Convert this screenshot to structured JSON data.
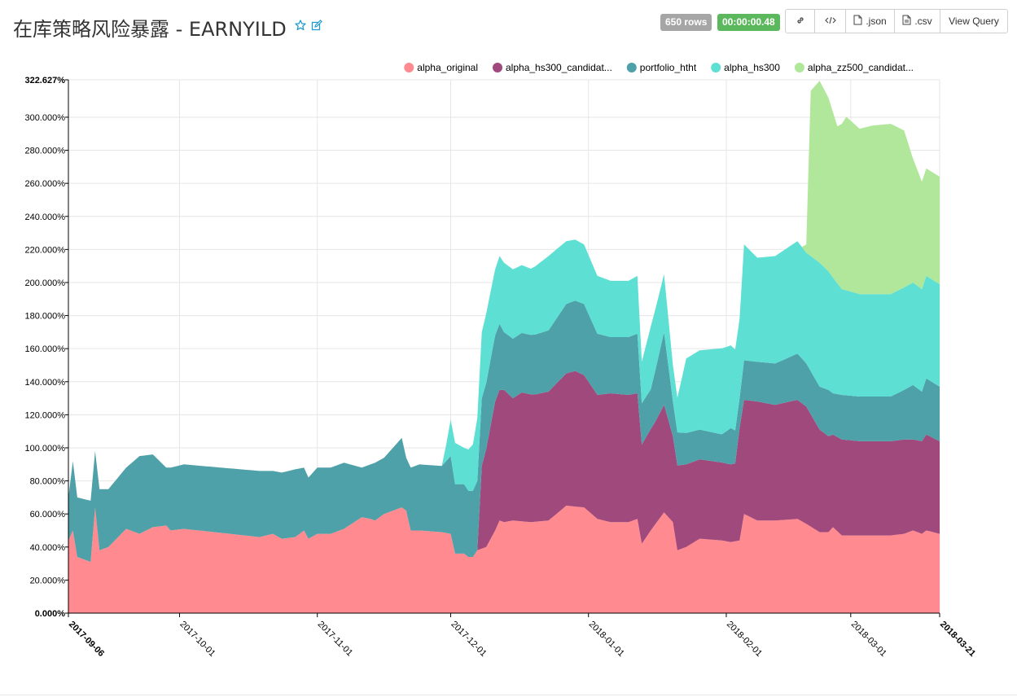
{
  "header": {
    "title": "在库策略风险暴露 - EARNYILD",
    "rows_badge": "650 rows",
    "time_badge": "00:00:00.48",
    "buttons": {
      "json": ".json",
      "csv": ".csv",
      "view_query": "View Query"
    },
    "icons": [
      "star-icon",
      "edit-icon",
      "link-icon",
      "code-icon",
      "file-icon",
      "file-text-icon"
    ]
  },
  "chart_data": {
    "type": "area",
    "stacked": true,
    "x_format": "date",
    "xlim": [
      "2017-09-06",
      "2018-03-21"
    ],
    "x_ticks": [
      "2017-09-06",
      "2017-10-01",
      "2017-11-01",
      "2017-12-01",
      "2018-01-01",
      "2018-02-01",
      "2018-03-01",
      "2018-03-21"
    ],
    "ylim": [
      0,
      322.627
    ],
    "y_ticks": [
      "0.000%",
      "20.000%",
      "40.000%",
      "60.000%",
      "80.000%",
      "100.000%",
      "120.000%",
      "140.000%",
      "160.000%",
      "180.000%",
      "200.000%",
      "220.000%",
      "240.000%",
      "260.000%",
      "280.000%",
      "300.000%",
      "322.627%"
    ],
    "grid": true,
    "legend": {
      "position": "top-right"
    },
    "series": [
      {
        "name": "alpha_original",
        "color": "#ff8a8f",
        "points": [
          [
            "2017-09-06",
            44
          ],
          [
            "2017-09-07",
            50
          ],
          [
            "2017-09-08",
            34
          ],
          [
            "2017-09-11",
            31
          ],
          [
            "2017-09-12",
            64
          ],
          [
            "2017-09-13",
            38
          ],
          [
            "2017-09-15",
            40
          ],
          [
            "2017-09-19",
            51
          ],
          [
            "2017-09-22",
            48
          ],
          [
            "2017-09-25",
            52
          ],
          [
            "2017-09-28",
            53
          ],
          [
            "2017-09-29",
            50
          ],
          [
            "2017-10-02",
            51
          ],
          [
            "2017-10-19",
            46
          ],
          [
            "2017-10-22",
            48
          ],
          [
            "2017-10-24",
            45
          ],
          [
            "2017-10-27",
            46
          ],
          [
            "2017-10-29",
            50
          ],
          [
            "2017-10-30",
            45
          ],
          [
            "2017-11-01",
            48
          ],
          [
            "2017-11-04",
            48
          ],
          [
            "2017-11-07",
            51
          ],
          [
            "2017-11-11",
            58
          ],
          [
            "2017-11-13",
            57
          ],
          [
            "2017-11-14",
            56
          ],
          [
            "2017-11-16",
            60
          ],
          [
            "2017-11-20",
            64
          ],
          [
            "2017-11-21",
            62
          ],
          [
            "2017-11-22",
            50
          ],
          [
            "2017-11-24",
            50
          ],
          [
            "2017-11-29",
            49
          ],
          [
            "2017-12-01",
            48
          ],
          [
            "2017-12-02",
            36
          ],
          [
            "2017-12-04",
            36
          ],
          [
            "2017-12-05",
            34
          ],
          [
            "2017-12-06",
            34
          ],
          [
            "2017-12-07",
            38
          ],
          [
            "2017-12-09",
            40
          ],
          [
            "2017-12-11",
            50
          ],
          [
            "2017-12-12",
            56
          ],
          [
            "2017-12-13",
            55
          ],
          [
            "2017-12-15",
            56
          ],
          [
            "2017-12-19",
            55
          ],
          [
            "2017-12-23",
            56
          ],
          [
            "2017-12-27",
            65
          ],
          [
            "2017-12-31",
            64
          ],
          [
            "2018-01-03",
            57
          ],
          [
            "2018-01-06",
            55
          ],
          [
            "2018-01-10",
            55
          ],
          [
            "2018-01-12",
            57
          ],
          [
            "2018-01-13",
            42
          ],
          [
            "2018-01-15",
            50
          ],
          [
            "2018-01-18",
            61
          ],
          [
            "2018-01-20",
            55
          ],
          [
            "2018-01-21",
            38
          ],
          [
            "2018-01-23",
            40
          ],
          [
            "2018-01-26",
            45
          ],
          [
            "2018-01-31",
            44
          ],
          [
            "2018-02-02",
            43
          ],
          [
            "2018-02-04",
            44
          ],
          [
            "2018-02-05",
            60
          ],
          [
            "2018-02-08",
            56
          ],
          [
            "2018-02-12",
            56
          ],
          [
            "2018-02-17",
            57
          ],
          [
            "2018-02-19",
            54
          ],
          [
            "2018-02-22",
            49
          ],
          [
            "2018-02-24",
            49
          ],
          [
            "2018-02-25",
            52
          ],
          [
            "2018-02-27",
            47
          ],
          [
            "2018-03-03",
            47
          ],
          [
            "2018-03-10",
            47
          ],
          [
            "2018-03-13",
            48
          ],
          [
            "2018-03-15",
            50
          ],
          [
            "2018-03-17",
            48
          ],
          [
            "2018-03-18",
            50
          ],
          [
            "2018-03-21",
            48
          ]
        ]
      },
      {
        "name": "alpha_hs300_candidat...",
        "color": "#a0497c",
        "points": [
          [
            "2017-09-06",
            0
          ],
          [
            "2017-12-07",
            0
          ],
          [
            "2017-12-08",
            50
          ],
          [
            "2017-12-11",
            78
          ],
          [
            "2017-12-13",
            80
          ],
          [
            "2017-12-15",
            74
          ],
          [
            "2017-12-17",
            78
          ],
          [
            "2017-12-20",
            77
          ],
          [
            "2017-12-23",
            78
          ],
          [
            "2017-12-27",
            80
          ],
          [
            "2017-12-29",
            82
          ],
          [
            "2017-12-31",
            80
          ],
          [
            "2018-01-03",
            75
          ],
          [
            "2018-01-06",
            78
          ],
          [
            "2018-01-10",
            77
          ],
          [
            "2018-01-12",
            76
          ],
          [
            "2018-01-13",
            60
          ],
          [
            "2018-01-16",
            62
          ],
          [
            "2018-01-18",
            65
          ],
          [
            "2018-01-20",
            52
          ],
          [
            "2018-01-23",
            50
          ],
          [
            "2018-01-26",
            48
          ],
          [
            "2018-02-01",
            47
          ],
          [
            "2018-02-03",
            47
          ],
          [
            "2018-02-04",
            68
          ],
          [
            "2018-02-08",
            72
          ],
          [
            "2018-02-12",
            70
          ],
          [
            "2018-02-17",
            72
          ],
          [
            "2018-02-19",
            71
          ],
          [
            "2018-02-22",
            62
          ],
          [
            "2018-02-25",
            56
          ],
          [
            "2018-02-27",
            58
          ],
          [
            "2018-03-03",
            57
          ],
          [
            "2018-03-10",
            57
          ],
          [
            "2018-03-13",
            57
          ],
          [
            "2018-03-15",
            55
          ],
          [
            "2018-03-17",
            56
          ],
          [
            "2018-03-18",
            58
          ],
          [
            "2018-03-21",
            56
          ]
        ]
      },
      {
        "name": "portfolio_htht",
        "color": "#4ea1a8",
        "points": [
          [
            "2017-09-06",
            26
          ],
          [
            "2017-09-07",
            42
          ],
          [
            "2017-09-08",
            36
          ],
          [
            "2017-09-11",
            37
          ],
          [
            "2017-09-12",
            34
          ],
          [
            "2017-09-13",
            37
          ],
          [
            "2017-09-15",
            35
          ],
          [
            "2017-09-19",
            37
          ],
          [
            "2017-09-22",
            47
          ],
          [
            "2017-09-25",
            44
          ],
          [
            "2017-09-28",
            35
          ],
          [
            "2017-09-29",
            38
          ],
          [
            "2017-10-02",
            39
          ],
          [
            "2017-10-19",
            40
          ],
          [
            "2017-10-22",
            38
          ],
          [
            "2017-10-24",
            40
          ],
          [
            "2017-10-27",
            41
          ],
          [
            "2017-10-29",
            38
          ],
          [
            "2017-10-30",
            37
          ],
          [
            "2017-11-01",
            40
          ],
          [
            "2017-11-04",
            40
          ],
          [
            "2017-11-07",
            40
          ],
          [
            "2017-11-11",
            30
          ],
          [
            "2017-11-13",
            33
          ],
          [
            "2017-11-14",
            35
          ],
          [
            "2017-11-16",
            34
          ],
          [
            "2017-11-20",
            42
          ],
          [
            "2017-11-21",
            32
          ],
          [
            "2017-11-22",
            38
          ],
          [
            "2017-11-24",
            40
          ],
          [
            "2017-11-29",
            40
          ],
          [
            "2017-12-01",
            47
          ],
          [
            "2017-12-02",
            42
          ],
          [
            "2017-12-04",
            42
          ],
          [
            "2017-12-05",
            40
          ],
          [
            "2017-12-06",
            40
          ],
          [
            "2017-12-07",
            42
          ],
          [
            "2017-12-09",
            40
          ],
          [
            "2017-12-11",
            40
          ],
          [
            "2017-12-12",
            40
          ],
          [
            "2017-12-13",
            35
          ],
          [
            "2017-12-15",
            36
          ],
          [
            "2017-12-19",
            36
          ],
          [
            "2017-12-23",
            37
          ],
          [
            "2017-12-27",
            42
          ],
          [
            "2017-12-31",
            43
          ],
          [
            "2018-01-03",
            37
          ],
          [
            "2018-01-06",
            34
          ],
          [
            "2018-01-10",
            35
          ],
          [
            "2018-01-12",
            36
          ],
          [
            "2018-01-13",
            25
          ],
          [
            "2018-01-15",
            24
          ],
          [
            "2018-01-18",
            44
          ],
          [
            "2018-01-20",
            21
          ],
          [
            "2018-01-21",
            20
          ],
          [
            "2018-01-23",
            19
          ],
          [
            "2018-01-26",
            18
          ],
          [
            "2018-01-31",
            17
          ],
          [
            "2018-02-02",
            22
          ],
          [
            "2018-02-04",
            18
          ],
          [
            "2018-02-05",
            24
          ],
          [
            "2018-02-08",
            24
          ],
          [
            "2018-02-12",
            25
          ],
          [
            "2018-02-17",
            28
          ],
          [
            "2018-02-19",
            26
          ],
          [
            "2018-02-22",
            26
          ],
          [
            "2018-02-24",
            28
          ],
          [
            "2018-02-25",
            25
          ],
          [
            "2018-02-27",
            27
          ],
          [
            "2018-03-03",
            27
          ],
          [
            "2018-03-10",
            27
          ],
          [
            "2018-03-13",
            30
          ],
          [
            "2018-03-15",
            33
          ],
          [
            "2018-03-17",
            30
          ],
          [
            "2018-03-18",
            34
          ],
          [
            "2018-03-21",
            33
          ]
        ]
      },
      {
        "name": "alpha_hs300",
        "color": "#5de0d3",
        "points": [
          [
            "2017-09-06",
            0
          ],
          [
            "2017-11-29",
            0
          ],
          [
            "2017-11-30",
            10
          ],
          [
            "2017-12-01",
            22
          ],
          [
            "2017-12-02",
            25
          ],
          [
            "2017-12-04",
            22
          ],
          [
            "2017-12-06",
            28
          ],
          [
            "2017-12-07",
            38
          ],
          [
            "2017-12-09",
            42
          ],
          [
            "2017-12-11",
            40
          ],
          [
            "2017-12-13",
            42
          ],
          [
            "2017-12-15",
            42
          ],
          [
            "2017-12-19",
            40
          ],
          [
            "2017-12-23",
            45
          ],
          [
            "2017-12-27",
            38
          ],
          [
            "2017-12-31",
            36
          ],
          [
            "2018-01-03",
            35
          ],
          [
            "2018-01-06",
            34
          ],
          [
            "2018-01-10",
            34
          ],
          [
            "2018-01-12",
            35
          ],
          [
            "2018-01-13",
            25
          ],
          [
            "2018-01-15",
            38
          ],
          [
            "2018-01-18",
            35
          ],
          [
            "2018-01-20",
            22
          ],
          [
            "2018-01-21",
            21
          ],
          [
            "2018-01-23",
            45
          ],
          [
            "2018-01-26",
            48
          ],
          [
            "2018-01-31",
            52
          ],
          [
            "2018-02-02",
            50
          ],
          [
            "2018-02-04",
            48
          ],
          [
            "2018-02-05",
            70
          ],
          [
            "2018-02-08",
            63
          ],
          [
            "2018-02-12",
            65
          ],
          [
            "2018-02-17",
            68
          ],
          [
            "2018-02-19",
            67
          ],
          [
            "2018-02-22",
            75
          ],
          [
            "2018-02-25",
            70
          ],
          [
            "2018-02-27",
            64
          ],
          [
            "2018-03-03",
            62
          ],
          [
            "2018-03-10",
            62
          ],
          [
            "2018-03-13",
            62
          ],
          [
            "2018-03-15",
            62
          ],
          [
            "2018-03-17",
            62
          ],
          [
            "2018-03-18",
            62
          ],
          [
            "2018-03-21",
            62
          ]
        ]
      },
      {
        "name": "alpha_zz500_candidat...",
        "color": "#b0e79a",
        "points": [
          [
            "2018-02-18",
            0
          ],
          [
            "2018-02-19",
            5
          ],
          [
            "2018-02-20",
            100
          ],
          [
            "2018-02-22",
            110
          ],
          [
            "2018-02-24",
            105
          ],
          [
            "2018-02-26",
            95
          ],
          [
            "2018-02-28",
            105
          ],
          [
            "2018-03-03",
            100
          ],
          [
            "2018-03-06",
            102
          ],
          [
            "2018-03-10",
            103
          ],
          [
            "2018-03-13",
            95
          ],
          [
            "2018-03-15",
            75
          ],
          [
            "2018-03-17",
            65
          ],
          [
            "2018-03-19",
            65
          ],
          [
            "2018-03-21",
            65
          ]
        ]
      }
    ]
  }
}
